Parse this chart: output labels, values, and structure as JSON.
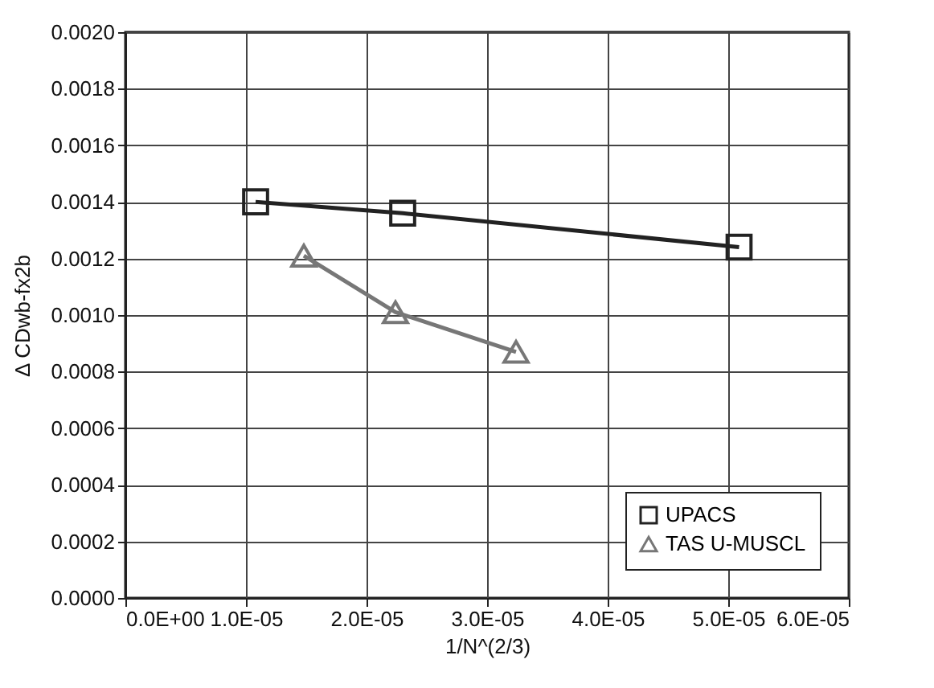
{
  "chart_data": {
    "type": "line",
    "xlabel": "1/N^(2/3)",
    "ylabel": "Δ CDwb-fx2b",
    "xlim": [
      0,
      6e-05
    ],
    "xticks": [
      {
        "value": 0,
        "label": "0.0E+00"
      },
      {
        "value": 1e-05,
        "label": "1.0E-05"
      },
      {
        "value": 2e-05,
        "label": "2.0E-05"
      },
      {
        "value": 3e-05,
        "label": "3.0E-05"
      },
      {
        "value": 4e-05,
        "label": "4.0E-05"
      },
      {
        "value": 5e-05,
        "label": "5.0E-05"
      },
      {
        "value": 6e-05,
        "label": "6.0E-05"
      }
    ],
    "ylim": [
      0,
      0.002
    ],
    "yticks": [
      {
        "value": 0,
        "label": "0.0000"
      },
      {
        "value": 0.0002,
        "label": "0.0002"
      },
      {
        "value": 0.0004,
        "label": "0.0004"
      },
      {
        "value": 0.0006,
        "label": "0.0006"
      },
      {
        "value": 0.0008,
        "label": "0.0008"
      },
      {
        "value": 0.001,
        "label": "0.0010"
      },
      {
        "value": 0.0012,
        "label": "0.0012"
      },
      {
        "value": 0.0014,
        "label": "0.0014"
      },
      {
        "value": 0.0016,
        "label": "0.0016"
      },
      {
        "value": 0.0018,
        "label": "0.0018"
      },
      {
        "value": 0.002,
        "label": "0.0020"
      }
    ],
    "grid": true,
    "legend": "bottom right",
    "line_style": "solid",
    "series": [
      {
        "name": "UPACS",
        "color": "#222222",
        "marker": "square",
        "x": [
          1.08e-05,
          2.3e-05,
          5.09e-05
        ],
        "values": [
          0.0014,
          0.00136,
          0.00124
        ]
      },
      {
        "name": "TAS U-MUSCL",
        "color": "#777777",
        "marker": "triangle",
        "x": [
          1.48e-05,
          2.24e-05,
          3.24e-05
        ],
        "values": [
          0.00121,
          0.00101,
          0.00087
        ]
      }
    ]
  }
}
